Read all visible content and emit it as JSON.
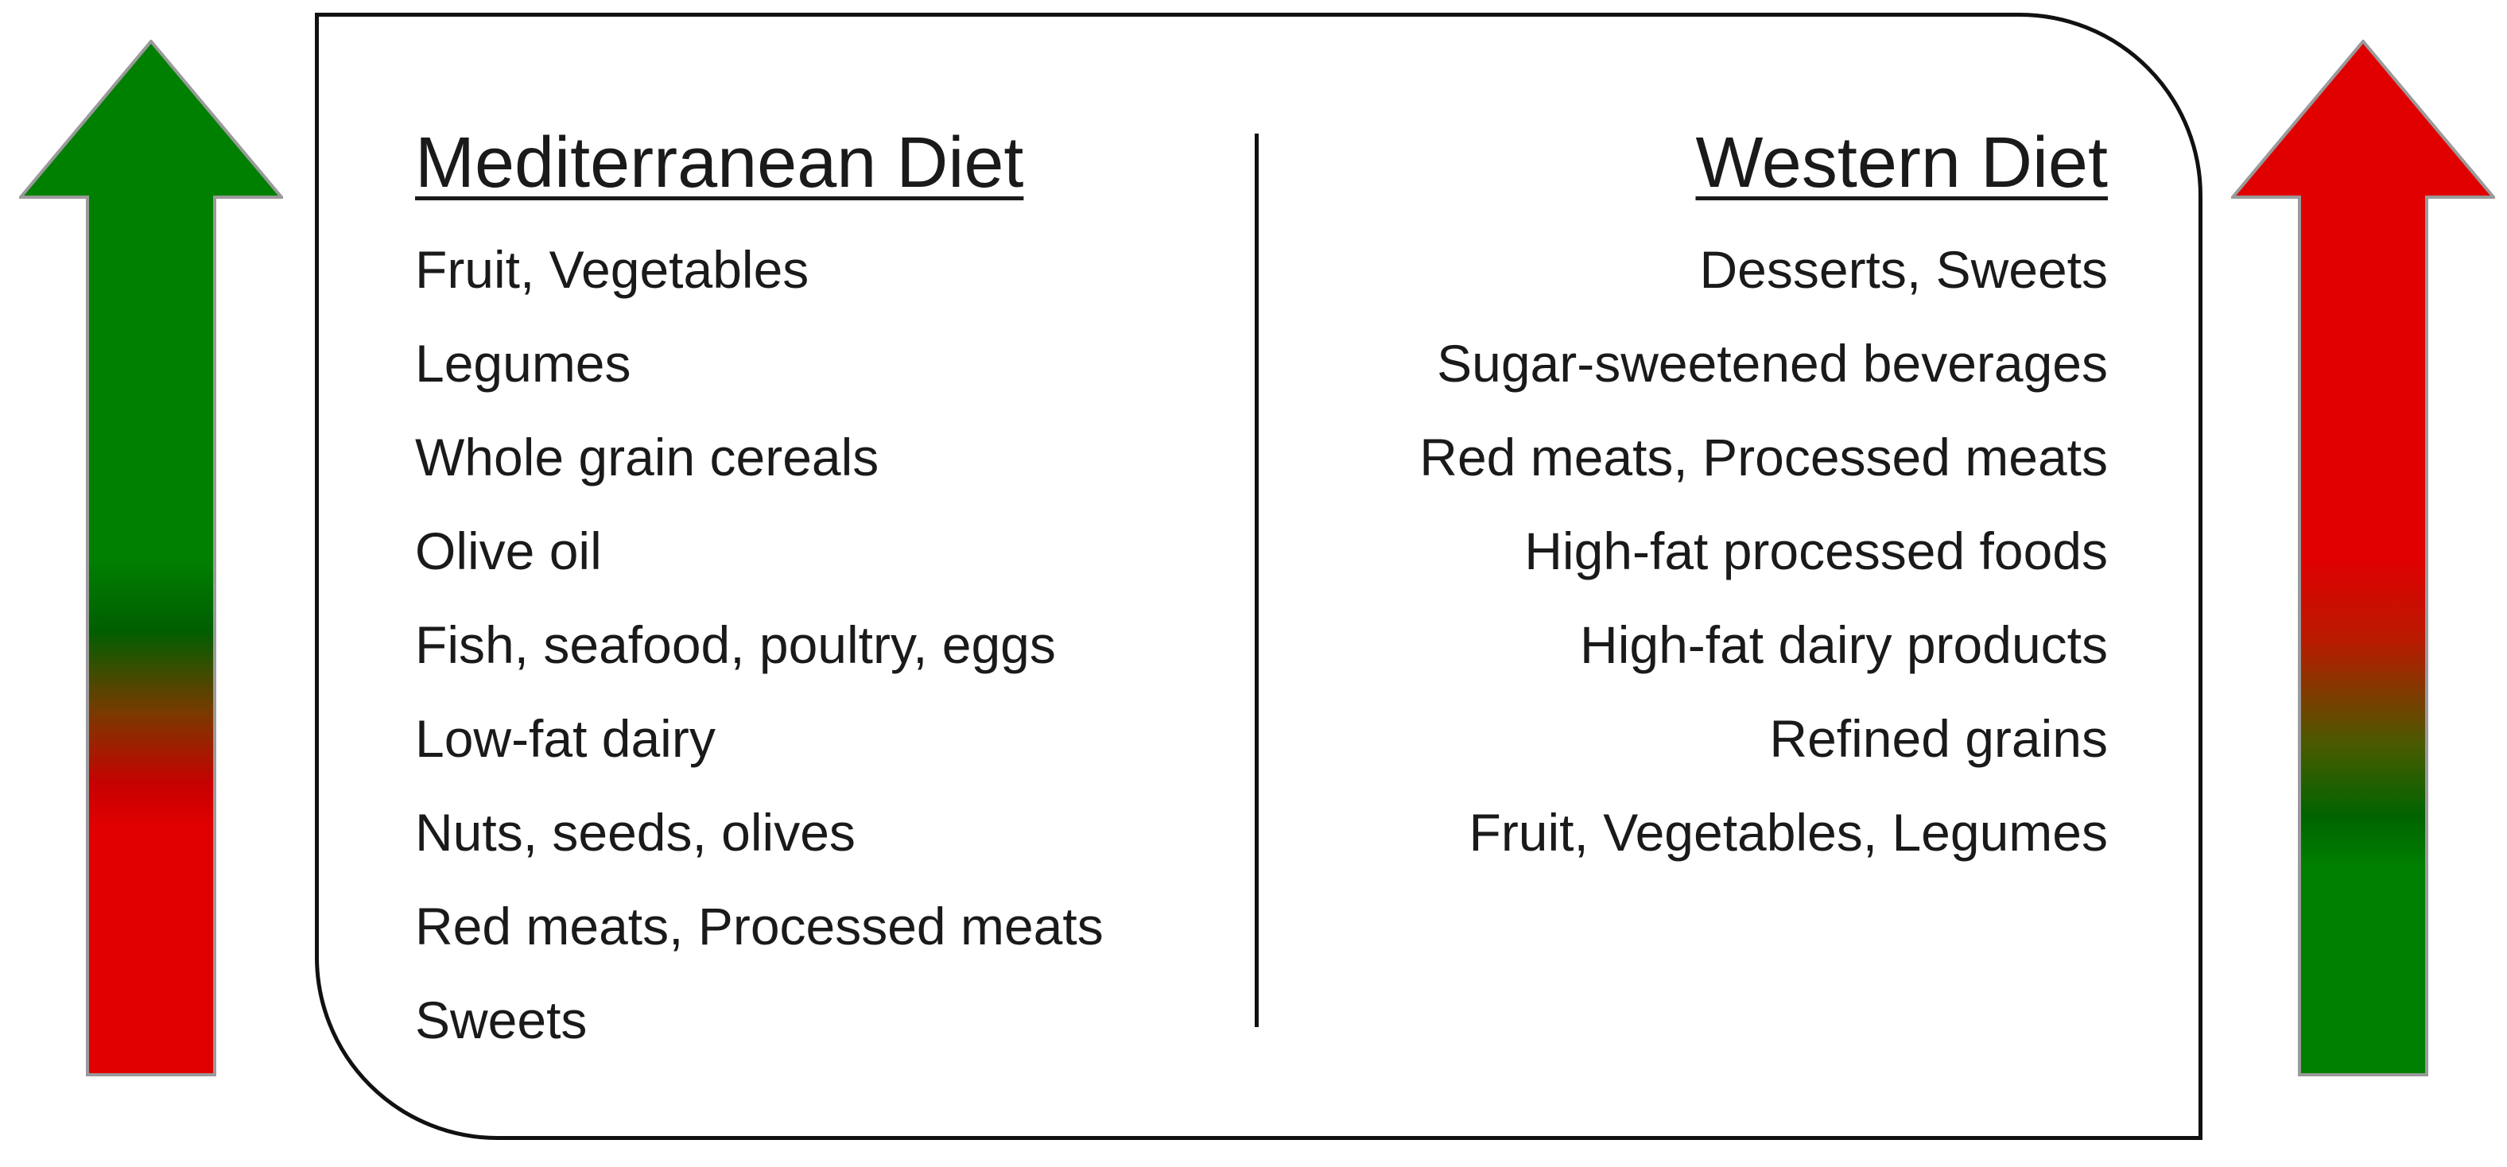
{
  "mediterranean": {
    "title": "Mediterranean Diet",
    "items": [
      "Fruit, Vegetables",
      "Legumes",
      "Whole grain cereals",
      "Olive oil",
      "Fish, seafood, poultry, eggs",
      "Low-fat dairy",
      "Nuts, seeds, olives",
      "Red meats, Processed meats",
      "Sweets"
    ]
  },
  "western": {
    "title": "Western Diet",
    "items": [
      "Desserts, Sweets",
      "Sugar-sweetened beverages",
      "Red meats, Processed meats",
      "High-fat processed foods",
      "High-fat dairy products",
      "Refined grains",
      "Fruit, Vegetables, Legumes"
    ]
  },
  "arrows": {
    "left": {
      "direction": "up",
      "top_color": "#008000",
      "bottom_color": "#e00000"
    },
    "right": {
      "direction": "up",
      "top_color": "#e00000",
      "bottom_color": "#008000"
    }
  }
}
